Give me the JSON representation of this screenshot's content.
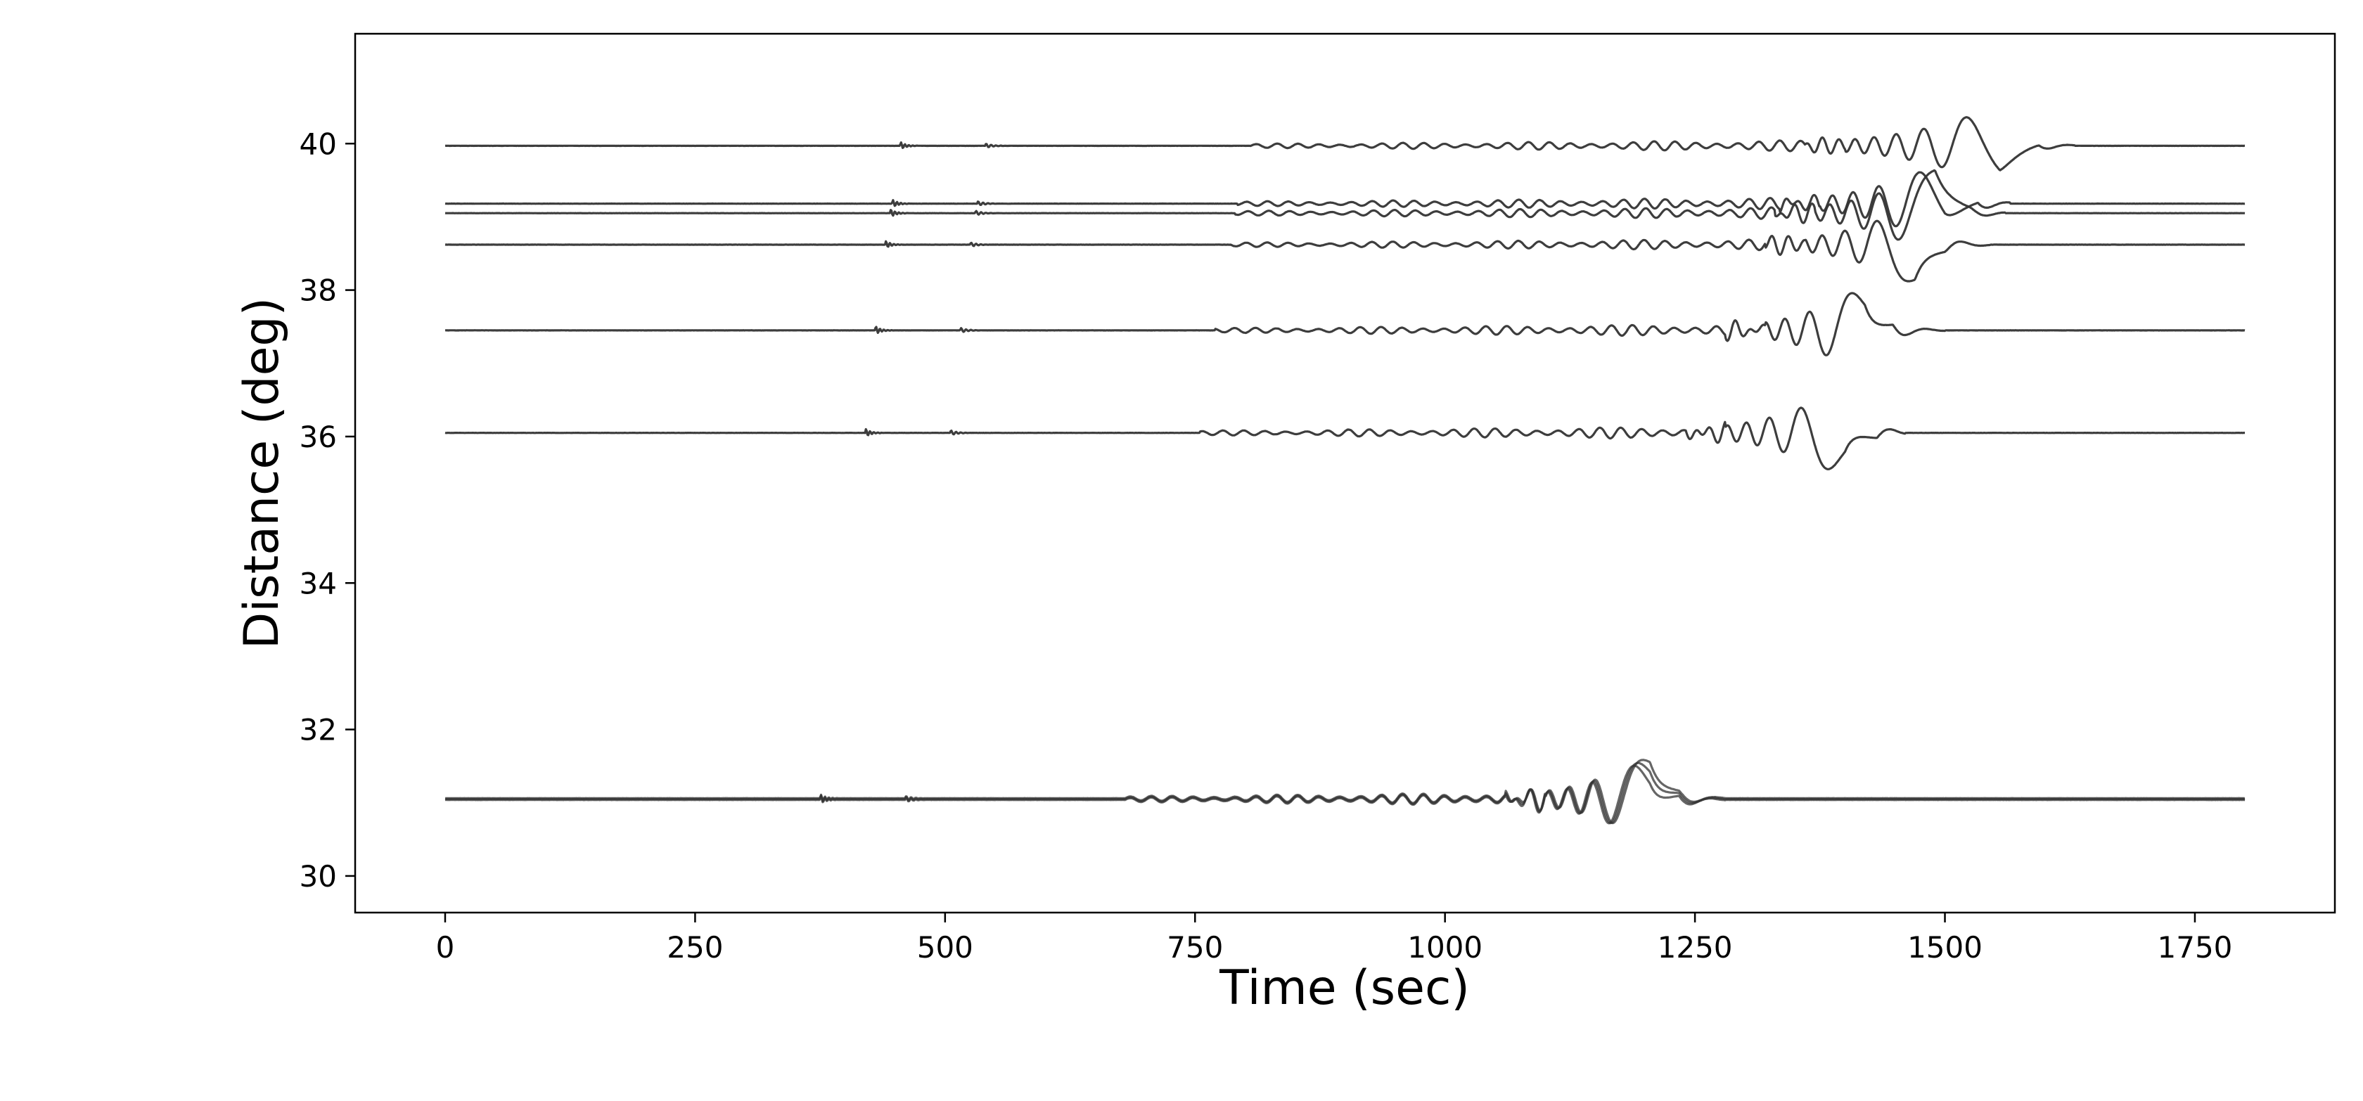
{
  "chart_data": {
    "type": "line",
    "title": "",
    "xlabel": "Time (sec)",
    "ylabel": "Distance (deg)",
    "xlim": [
      -90,
      1890
    ],
    "ylim": [
      29.5,
      41.5
    ],
    "xticks": [
      0,
      250,
      500,
      750,
      1000,
      1250,
      1500,
      1750
    ],
    "yticks": [
      30,
      32,
      34,
      36,
      38,
      40
    ],
    "grid": false,
    "legend": "none",
    "line_color": "#333333",
    "series": [
      {
        "distance": 31.05,
        "p_arrival": 375,
        "s_arrival": 680,
        "surface_start": 1100,
        "surface_end": 1250,
        "peak_time": 1205,
        "peak_amplitude": 0.95,
        "end_time": 1280,
        "duplicate_traces": 3
      },
      {
        "distance": 36.05,
        "p_arrival": 420,
        "s_arrival": 755,
        "surface_start": 1280,
        "surface_end": 1430,
        "peak_time": 1400,
        "peak_amplitude": 1.0,
        "end_time": 1460,
        "duplicate_traces": 1
      },
      {
        "distance": 37.45,
        "p_arrival": 430,
        "s_arrival": 770,
        "surface_start": 1320,
        "surface_end": 1470,
        "peak_time": 1420,
        "peak_amplitude": 1.0,
        "end_time": 1500,
        "duplicate_traces": 1
      },
      {
        "distance": 38.62,
        "p_arrival": 440,
        "s_arrival": 785,
        "surface_start": 1360,
        "surface_end": 1520,
        "peak_time": 1470,
        "peak_amplitude": 0.9,
        "end_time": 1545,
        "duplicate_traces": 1
      },
      {
        "distance": 39.05,
        "p_arrival": 445,
        "s_arrival": 790,
        "surface_start": 1370,
        "surface_end": 1540,
        "peak_time": 1490,
        "peak_amplitude": 0.95,
        "end_time": 1560,
        "duplicate_traces": 1
      },
      {
        "distance": 39.18,
        "p_arrival": 447,
        "s_arrival": 792,
        "surface_start": 1375,
        "surface_end": 1545,
        "peak_time": 1500,
        "peak_amplitude": 0.95,
        "end_time": 1565,
        "duplicate_traces": 1
      },
      {
        "distance": 39.97,
        "p_arrival": 455,
        "s_arrival": 805,
        "surface_start": 1400,
        "surface_end": 1580,
        "peak_time": 1555,
        "peak_amplitude": 0.9,
        "end_time": 1630,
        "duplicate_traces": 1
      }
    ],
    "x_end": 1800
  }
}
